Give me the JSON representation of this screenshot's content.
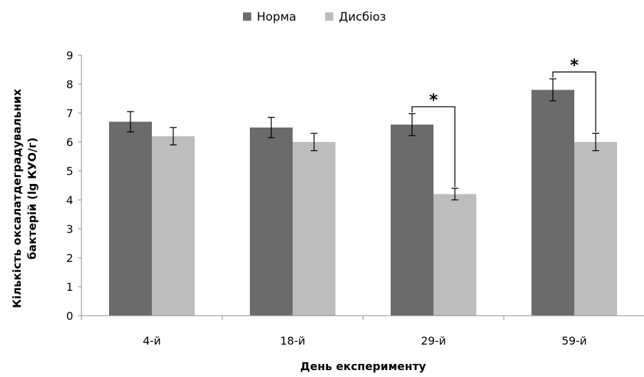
{
  "chart_data": {
    "type": "bar",
    "categories": [
      "4-й",
      "18-й",
      "29-й",
      "59-й"
    ],
    "series": [
      {
        "name": "Норма",
        "color": "#6b6b6b",
        "values": [
          6.7,
          6.5,
          6.6,
          7.8
        ],
        "errors": [
          0.35,
          0.35,
          0.38,
          0.38
        ]
      },
      {
        "name": "Дисбіоз",
        "color": "#bdbdbd",
        "values": [
          6.2,
          6.0,
          4.2,
          6.0
        ],
        "errors": [
          0.3,
          0.3,
          0.2,
          0.3
        ]
      }
    ],
    "xlabel": "День експерименту",
    "ylabel": [
      "Кількість оксалатдеградувальних",
      "бактерій (lg КУО/г)"
    ],
    "ylim": [
      0,
      9
    ],
    "yticks": [
      "0",
      "1",
      "2",
      "3",
      "4",
      "5",
      "6",
      "7",
      "8",
      "9"
    ],
    "grid": false,
    "legend_position": "top-center",
    "annotations": [
      {
        "category_index": 2,
        "text": "*"
      },
      {
        "category_index": 3,
        "text": "*"
      }
    ]
  }
}
